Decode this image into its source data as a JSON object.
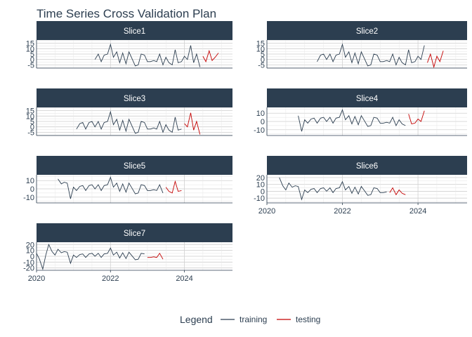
{
  "chart_data": {
    "type": "line",
    "title": "Time Series Cross Validation Plan",
    "x_range": [
      2020,
      2025.3
    ],
    "x_ticks": [
      2020,
      2022,
      2024
    ],
    "x_tick_labels": [
      "2020",
      "2022",
      "2024"
    ],
    "colors": {
      "training": "#2c3e50",
      "testing": "#c40000",
      "strip": "#2c3e50"
    },
    "legend": {
      "title": "Legend",
      "position": "bottom",
      "entries": [
        "training",
        "testing"
      ]
    },
    "grid": true,
    "base_series": [
      [
        2020.0,
        5
      ],
      [
        2020.08,
        -5
      ],
      [
        2020.17,
        -22
      ],
      [
        2020.25,
        2
      ],
      [
        2020.33,
        20
      ],
      [
        2020.42,
        8
      ],
      [
        2020.5,
        2
      ],
      [
        2020.58,
        12
      ],
      [
        2020.67,
        6
      ],
      [
        2020.75,
        8
      ],
      [
        2020.83,
        7
      ],
      [
        2020.92,
        -12
      ],
      [
        2021.0,
        2
      ],
      [
        2021.08,
        -2
      ],
      [
        2021.17,
        3
      ],
      [
        2021.25,
        4
      ],
      [
        2021.33,
        -2
      ],
      [
        2021.42,
        4
      ],
      [
        2021.5,
        5
      ],
      [
        2021.58,
        0
      ],
      [
        2021.67,
        5
      ],
      [
        2021.75,
        -2
      ],
      [
        2021.83,
        4
      ],
      [
        2021.92,
        5
      ],
      [
        2022.0,
        14
      ],
      [
        2022.08,
        2
      ],
      [
        2022.17,
        7
      ],
      [
        2022.25,
        -3
      ],
      [
        2022.33,
        6
      ],
      [
        2022.42,
        -4
      ],
      [
        2022.5,
        7
      ],
      [
        2022.58,
        1
      ],
      [
        2022.67,
        -6
      ],
      [
        2022.75,
        -5
      ],
      [
        2022.83,
        5
      ],
      [
        2022.92,
        4
      ],
      [
        2023.0,
        -2
      ],
      [
        2023.08,
        -2
      ],
      [
        2023.17,
        -1
      ],
      [
        2023.25,
        -2
      ],
      [
        2023.33,
        5
      ],
      [
        2023.42,
        -5
      ],
      [
        2023.5,
        2
      ],
      [
        2023.58,
        -3
      ],
      [
        2023.67,
        -5
      ],
      [
        2023.75,
        9
      ],
      [
        2023.83,
        -3
      ],
      [
        2023.92,
        -2
      ],
      [
        2024.0,
        3
      ],
      [
        2024.08,
        0
      ],
      [
        2024.17,
        13
      ],
      [
        2024.25,
        -3
      ],
      [
        2024.33,
        5
      ],
      [
        2024.42,
        -7
      ],
      [
        2024.5,
        3
      ],
      [
        2024.58,
        -2
      ],
      [
        2024.67,
        8
      ],
      [
        2024.75,
        -1
      ],
      [
        2024.83,
        2
      ],
      [
        2024.92,
        6
      ]
    ],
    "panels": [
      {
        "label": "Slice1",
        "train": [
          2021.58,
          2024.42
        ],
        "test": [
          2024.42,
          2024.92
        ],
        "y_range": [
          -8,
          18
        ],
        "y_ticks": [
          15,
          10,
          5,
          0,
          -5
        ],
        "y_tick_labels": [
          "15",
          "10",
          "5",
          "0",
          "-5"
        ]
      },
      {
        "label": "Slice2",
        "train": [
          2021.33,
          2024.17
        ],
        "test": [
          2024.17,
          2024.67
        ],
        "y_range": [
          -8,
          18
        ],
        "y_ticks": [
          15,
          10,
          5,
          0,
          -5
        ],
        "y_tick_labels": [
          "15",
          "10",
          "5",
          "0",
          "-5"
        ]
      },
      {
        "label": "Slice3",
        "train": [
          2021.08,
          2023.92
        ],
        "test": [
          2023.92,
          2024.42
        ],
        "y_range": [
          -8,
          18
        ],
        "y_ticks": [
          15,
          10,
          5,
          0,
          -5
        ],
        "y_tick_labels": [
          "15",
          "10",
          "5",
          "0",
          "-5"
        ]
      },
      {
        "label": "Slice4",
        "train": [
          2020.83,
          2023.67
        ],
        "test": [
          2023.67,
          2024.17
        ],
        "y_range": [
          -17,
          17
        ],
        "y_ticks": [
          10,
          0,
          -10
        ],
        "y_tick_labels": [
          "10",
          "0",
          "-10"
        ]
      },
      {
        "label": "Slice5",
        "train": [
          2020.58,
          2023.42
        ],
        "test": [
          2023.42,
          2023.92
        ],
        "y_range": [
          -17,
          17
        ],
        "y_ticks": [
          10,
          0,
          -10
        ],
        "y_tick_labels": [
          "10",
          "0",
          "-10"
        ]
      },
      {
        "label": "Slice6",
        "train": [
          2020.33,
          2023.17
        ],
        "test": [
          2023.17,
          2023.67
        ],
        "y_range": [
          -17,
          24
        ],
        "y_ticks": [
          20,
          10,
          0,
          -10
        ],
        "y_tick_labels": [
          "20",
          "10",
          "0",
          "-10"
        ]
      },
      {
        "label": "Slice7",
        "train": [
          2020.0,
          2022.92
        ],
        "test": [
          2022.92,
          2023.42
        ],
        "y_range": [
          -24,
          24
        ],
        "y_ticks": [
          20,
          10,
          0,
          -10,
          -20
        ],
        "y_tick_labels": [
          "20",
          "10",
          "0",
          "-10",
          "-20"
        ]
      }
    ]
  }
}
